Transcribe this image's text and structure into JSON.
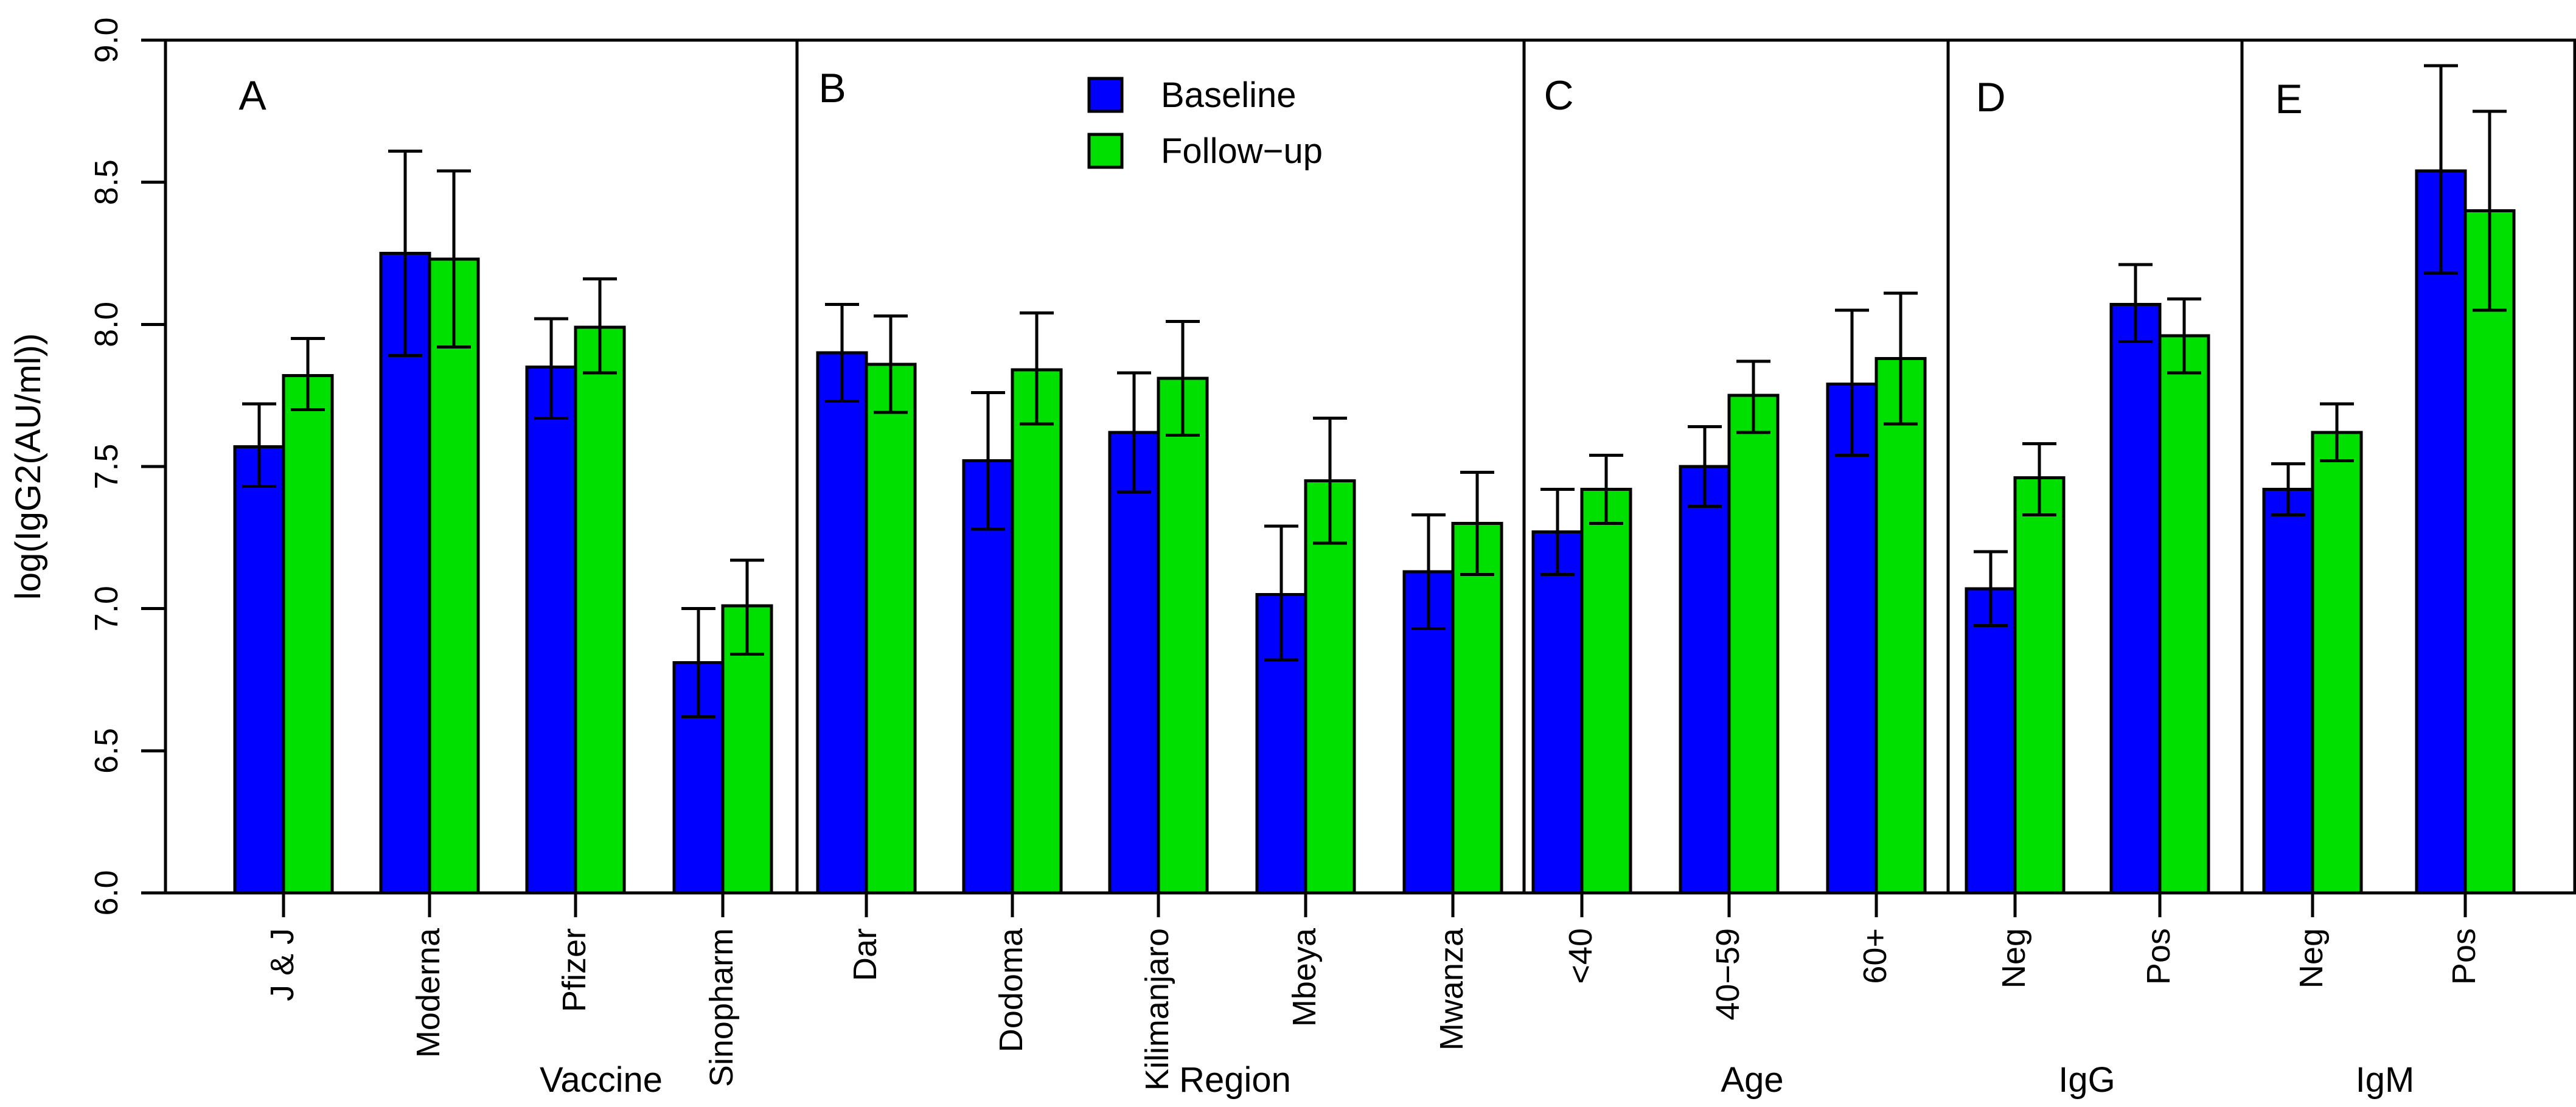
{
  "chart_data": {
    "type": "bar",
    "title": "",
    "ylabel": "log(IgG2(AU/ml))",
    "xlabel": "",
    "ylim": [
      6.0,
      9.0
    ],
    "ytick_labels": [
      "6.0",
      "6.5",
      "7.0",
      "7.5",
      "8.0",
      "8.5",
      "9.0"
    ],
    "grid": false,
    "legend": {
      "position": "top-center",
      "entries": [
        {
          "label": "Baseline",
          "color": "#0000FF"
        },
        {
          "label": "Follow−up",
          "color": "#00E000"
        }
      ]
    },
    "series_names": [
      "Baseline",
      "Follow−up"
    ],
    "panels": [
      {
        "letter": "A",
        "xlabel": "Vaccine",
        "categories": [
          "J & J",
          "Moderna",
          "Pfizer",
          "Sinopharm"
        ],
        "baseline": [
          {
            "value": 7.57,
            "lo": 7.43,
            "hi": 7.72
          },
          {
            "value": 8.25,
            "lo": 7.89,
            "hi": 8.61
          },
          {
            "value": 7.85,
            "lo": 7.67,
            "hi": 8.02
          },
          {
            "value": 6.81,
            "lo": 6.62,
            "hi": 7.0
          }
        ],
        "followup": [
          {
            "value": 7.82,
            "lo": 7.7,
            "hi": 7.95
          },
          {
            "value": 8.23,
            "lo": 7.92,
            "hi": 8.54
          },
          {
            "value": 7.99,
            "lo": 7.83,
            "hi": 8.16
          },
          {
            "value": 7.01,
            "lo": 6.84,
            "hi": 7.17
          }
        ]
      },
      {
        "letter": "B",
        "xlabel": "Region",
        "categories": [
          "Dar",
          "Dodoma",
          "Kilimanjaro",
          "Mbeya",
          "Mwanza"
        ],
        "baseline": [
          {
            "value": 7.9,
            "lo": 7.73,
            "hi": 8.07
          },
          {
            "value": 7.52,
            "lo": 7.28,
            "hi": 7.76
          },
          {
            "value": 7.62,
            "lo": 7.41,
            "hi": 7.83
          },
          {
            "value": 7.05,
            "lo": 6.82,
            "hi": 7.29
          },
          {
            "value": 7.13,
            "lo": 6.93,
            "hi": 7.33
          }
        ],
        "followup": [
          {
            "value": 7.86,
            "lo": 7.69,
            "hi": 8.03
          },
          {
            "value": 7.84,
            "lo": 7.65,
            "hi": 8.04
          },
          {
            "value": 7.81,
            "lo": 7.61,
            "hi": 8.01
          },
          {
            "value": 7.45,
            "lo": 7.23,
            "hi": 7.67
          },
          {
            "value": 7.3,
            "lo": 7.12,
            "hi": 7.48
          }
        ]
      },
      {
        "letter": "C",
        "xlabel": "Age",
        "categories": [
          "<40",
          "40−59",
          "60+"
        ],
        "baseline": [
          {
            "value": 7.27,
            "lo": 7.12,
            "hi": 7.42
          },
          {
            "value": 7.5,
            "lo": 7.36,
            "hi": 7.64
          },
          {
            "value": 7.79,
            "lo": 7.54,
            "hi": 8.05
          }
        ],
        "followup": [
          {
            "value": 7.42,
            "lo": 7.3,
            "hi": 7.54
          },
          {
            "value": 7.75,
            "lo": 7.62,
            "hi": 7.87
          },
          {
            "value": 7.88,
            "lo": 7.65,
            "hi": 8.11
          }
        ]
      },
      {
        "letter": "D",
        "xlabel": "IgG",
        "categories": [
          "Neg",
          "Pos"
        ],
        "baseline": [
          {
            "value": 7.07,
            "lo": 6.94,
            "hi": 7.2
          },
          {
            "value": 8.07,
            "lo": 7.94,
            "hi": 8.21
          }
        ],
        "followup": [
          {
            "value": 7.46,
            "lo": 7.33,
            "hi": 7.58
          },
          {
            "value": 7.96,
            "lo": 7.83,
            "hi": 8.09
          }
        ]
      },
      {
        "letter": "E",
        "xlabel": "IgM",
        "categories": [
          "Neg",
          "Pos"
        ],
        "baseline": [
          {
            "value": 7.42,
            "lo": 7.33,
            "hi": 7.51
          },
          {
            "value": 8.54,
            "lo": 8.18,
            "hi": 8.91
          }
        ],
        "followup": [
          {
            "value": 7.62,
            "lo": 7.52,
            "hi": 7.72
          },
          {
            "value": 8.4,
            "lo": 8.05,
            "hi": 8.75
          }
        ]
      }
    ],
    "colors": {
      "baseline": "#0000FF",
      "followup": "#00E000",
      "axis": "#000000",
      "background": "#FFFFFF"
    }
  }
}
